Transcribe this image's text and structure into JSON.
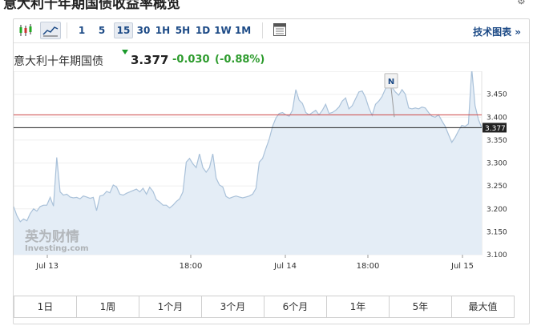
{
  "page": {
    "title": "意大利十年期国债收益率概览"
  },
  "toolbar": {
    "chart_type_icons": [
      "candlestick-chart-icon",
      "area-chart-icon"
    ],
    "intervals": [
      "1",
      "5",
      "15",
      "30",
      "1H",
      "5H",
      "1D",
      "1W",
      "1M"
    ],
    "active_interval": "15",
    "calendar_icon": "calendar-icon",
    "advanced_link": "技术图表 »"
  },
  "quote": {
    "name": "意大利十年期国债",
    "price": "3.377",
    "change": "-0.030",
    "change_pct": "(-0.88%)",
    "color_down": "#2c9b2c"
  },
  "chart_data": {
    "type": "area",
    "title": "",
    "xlabel": "",
    "ylabel": "",
    "ylim": [
      3.1,
      3.5
    ],
    "y_ticks": [
      "3.450",
      "3.400",
      "3.350",
      "3.300",
      "3.250",
      "3.200",
      "3.150",
      "3.100"
    ],
    "x_ticks": [
      "Jul 13",
      "18:00",
      "Jul 14",
      "18:00",
      "Jul 15"
    ],
    "current_price_label": "3.377",
    "current_price": 3.377,
    "reference_line": 3.405,
    "marker_label": "N",
    "watermark_cn": "英为财情",
    "watermark_en": "Investing.com",
    "values": [
      3.205,
      3.185,
      3.172,
      3.178,
      3.174,
      3.19,
      3.2,
      3.195,
      3.205,
      3.208,
      3.208,
      3.225,
      3.206,
      3.312,
      3.237,
      3.23,
      3.232,
      3.226,
      3.224,
      3.225,
      3.222,
      3.228,
      3.226,
      3.223,
      3.225,
      3.196,
      3.228,
      3.23,
      3.238,
      3.235,
      3.252,
      3.248,
      3.232,
      3.23,
      3.234,
      3.237,
      3.24,
      3.243,
      3.237,
      3.245,
      3.232,
      3.247,
      3.238,
      3.22,
      3.215,
      3.208,
      3.208,
      3.202,
      3.208,
      3.216,
      3.222,
      3.237,
      3.302,
      3.31,
      3.298,
      3.29,
      3.32,
      3.29,
      3.28,
      3.29,
      3.32,
      3.267,
      3.252,
      3.248,
      3.227,
      3.223,
      3.226,
      3.228,
      3.226,
      3.224,
      3.226,
      3.228,
      3.232,
      3.245,
      3.302,
      3.31,
      3.332,
      3.352,
      3.38,
      3.398,
      3.408,
      3.41,
      3.405,
      3.402,
      3.415,
      3.46,
      3.437,
      3.43,
      3.41,
      3.405,
      3.41,
      3.415,
      3.405,
      3.415,
      3.428,
      3.408,
      3.41,
      3.415,
      3.422,
      3.435,
      3.442,
      3.418,
      3.425,
      3.44,
      3.455,
      3.457,
      3.443,
      3.42,
      3.404,
      3.428,
      3.435,
      3.445,
      3.462,
      3.471,
      3.465,
      3.455,
      3.448,
      3.46,
      3.45,
      3.42,
      3.418,
      3.42,
      3.418,
      3.422,
      3.42,
      3.41,
      3.402,
      3.4,
      3.405,
      3.392,
      3.38,
      3.362,
      3.345,
      3.356,
      3.37,
      3.382,
      3.38,
      3.385,
      3.505,
      3.425,
      3.395,
      3.377
    ]
  },
  "range_buttons": [
    "1日",
    "1周",
    "1个月",
    "3个月",
    "6个月",
    "1年",
    "5年",
    "最大值"
  ]
}
